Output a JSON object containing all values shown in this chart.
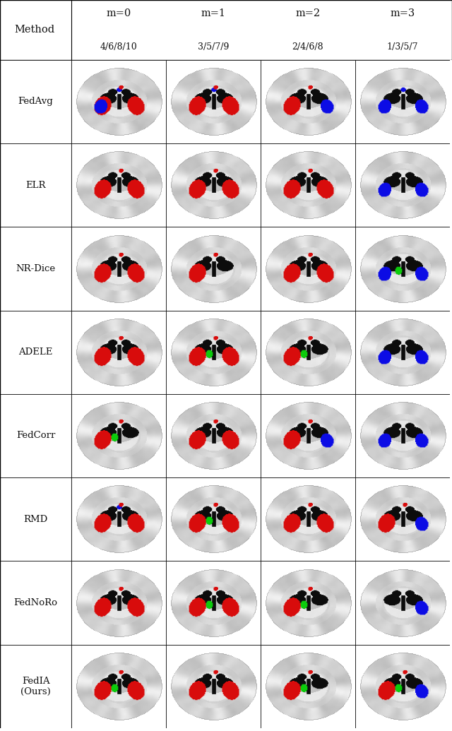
{
  "col_headers": [
    "m=0",
    "m=1",
    "m=2",
    "m=3"
  ],
  "col_subheaders": [
    "4/6/8/10",
    "3/5/7/9",
    "2/4/6/8",
    "1/3/5/7"
  ],
  "row_labels": [
    "FedAvg",
    "ELR",
    "NR-Dice",
    "ADELE",
    "FedCorr",
    "RMD",
    "FedNoRo",
    "FedIA\n(Ours)"
  ],
  "bg_color": "#ffffff",
  "n_rows": 8,
  "n_cols": 4,
  "figsize": [
    6.4,
    10.35
  ],
  "dpi": 100,
  "cell_configs": [
    [
      {
        "red": true,
        "blue": true,
        "green": false,
        "red_left": true,
        "red_right": true,
        "blue_left": true,
        "blue_right": false,
        "blue_upper": true
      },
      {
        "red": true,
        "blue": true,
        "green": false,
        "red_left": true,
        "red_right": true,
        "blue_left": false,
        "blue_right": false,
        "blue_upper": true
      },
      {
        "red": true,
        "blue": true,
        "green": false,
        "red_left": true,
        "red_right": false,
        "blue_left": false,
        "blue_right": true,
        "blue_upper": false
      },
      {
        "red": false,
        "blue": true,
        "green": false,
        "red_left": false,
        "red_right": false,
        "blue_left": true,
        "blue_right": true,
        "blue_upper": true
      }
    ],
    [
      {
        "red": true,
        "blue": false,
        "green": false,
        "red_left": true,
        "red_right": true,
        "blue_left": false,
        "blue_right": false,
        "blue_upper": false
      },
      {
        "red": true,
        "blue": false,
        "green": false,
        "red_left": true,
        "red_right": true,
        "blue_left": false,
        "blue_right": false,
        "blue_upper": false
      },
      {
        "red": true,
        "blue": false,
        "green": false,
        "red_left": true,
        "red_right": true,
        "blue_left": false,
        "blue_right": false,
        "blue_upper": false
      },
      {
        "red": false,
        "blue": true,
        "green": false,
        "red_left": false,
        "red_right": false,
        "blue_left": true,
        "blue_right": true,
        "blue_upper": false
      }
    ],
    [
      {
        "red": true,
        "blue": false,
        "green": false,
        "red_left": true,
        "red_right": true,
        "blue_left": false,
        "blue_right": false,
        "blue_upper": false
      },
      {
        "red": true,
        "blue": false,
        "green": false,
        "red_left": true,
        "red_right": false,
        "blue_left": false,
        "blue_right": false,
        "blue_upper": false
      },
      {
        "red": true,
        "blue": false,
        "green": false,
        "red_left": true,
        "red_right": true,
        "blue_left": false,
        "blue_right": false,
        "blue_upper": false
      },
      {
        "red": false,
        "blue": true,
        "green": true,
        "red_left": false,
        "red_right": false,
        "blue_left": true,
        "blue_right": true,
        "blue_upper": false
      }
    ],
    [
      {
        "red": true,
        "blue": false,
        "green": false,
        "red_left": true,
        "red_right": true,
        "blue_left": false,
        "blue_right": false,
        "blue_upper": false
      },
      {
        "red": true,
        "blue": false,
        "green": true,
        "red_left": true,
        "red_right": true,
        "blue_left": false,
        "blue_right": false,
        "blue_upper": false
      },
      {
        "red": true,
        "blue": false,
        "green": true,
        "red_left": true,
        "red_right": false,
        "blue_left": false,
        "blue_right": false,
        "blue_upper": false
      },
      {
        "red": false,
        "blue": true,
        "green": false,
        "red_left": false,
        "red_right": false,
        "blue_left": true,
        "blue_right": true,
        "blue_upper": false
      }
    ],
    [
      {
        "red": true,
        "blue": false,
        "green": true,
        "red_left": true,
        "red_right": false,
        "blue_left": false,
        "blue_right": false,
        "blue_upper": false
      },
      {
        "red": true,
        "blue": false,
        "green": false,
        "red_left": true,
        "red_right": true,
        "blue_left": false,
        "blue_right": false,
        "blue_upper": false
      },
      {
        "red": true,
        "blue": true,
        "green": false,
        "red_left": true,
        "red_right": false,
        "blue_left": false,
        "blue_right": true,
        "blue_upper": false
      },
      {
        "red": false,
        "blue": true,
        "green": false,
        "red_left": false,
        "red_right": false,
        "blue_left": true,
        "blue_right": true,
        "blue_upper": false
      }
    ],
    [
      {
        "red": true,
        "blue": true,
        "green": false,
        "red_left": true,
        "red_right": true,
        "blue_left": false,
        "blue_right": false,
        "blue_upper": true
      },
      {
        "red": true,
        "blue": false,
        "green": true,
        "red_left": true,
        "red_right": true,
        "blue_left": false,
        "blue_right": false,
        "blue_upper": false
      },
      {
        "red": true,
        "blue": false,
        "green": false,
        "red_left": true,
        "red_right": true,
        "blue_left": false,
        "blue_right": false,
        "blue_upper": false
      },
      {
        "red": true,
        "blue": true,
        "green": false,
        "red_left": true,
        "red_right": false,
        "blue_left": false,
        "blue_right": true,
        "blue_upper": false
      }
    ],
    [
      {
        "red": true,
        "blue": false,
        "green": false,
        "red_left": true,
        "red_right": true,
        "blue_left": false,
        "blue_right": false,
        "blue_upper": false
      },
      {
        "red": true,
        "blue": false,
        "green": true,
        "red_left": true,
        "red_right": true,
        "blue_left": false,
        "blue_right": false,
        "blue_upper": false
      },
      {
        "red": true,
        "blue": false,
        "green": true,
        "red_left": true,
        "red_right": false,
        "blue_left": false,
        "blue_right": false,
        "blue_upper": false
      },
      {
        "red": false,
        "blue": true,
        "green": false,
        "red_left": false,
        "red_right": false,
        "blue_left": false,
        "blue_right": true,
        "blue_upper": false
      }
    ],
    [
      {
        "red": true,
        "blue": true,
        "green": true,
        "red_left": true,
        "red_right": true,
        "blue_left": false,
        "blue_right": false,
        "blue_upper": false
      },
      {
        "red": true,
        "blue": false,
        "green": false,
        "red_left": true,
        "red_right": true,
        "blue_left": false,
        "blue_right": false,
        "blue_upper": false
      },
      {
        "red": true,
        "blue": false,
        "green": true,
        "red_left": true,
        "red_right": false,
        "blue_left": false,
        "blue_right": false,
        "blue_upper": false
      },
      {
        "red": true,
        "blue": true,
        "green": true,
        "red_left": true,
        "red_right": false,
        "blue_left": false,
        "blue_right": true,
        "blue_upper": false
      }
    ]
  ]
}
